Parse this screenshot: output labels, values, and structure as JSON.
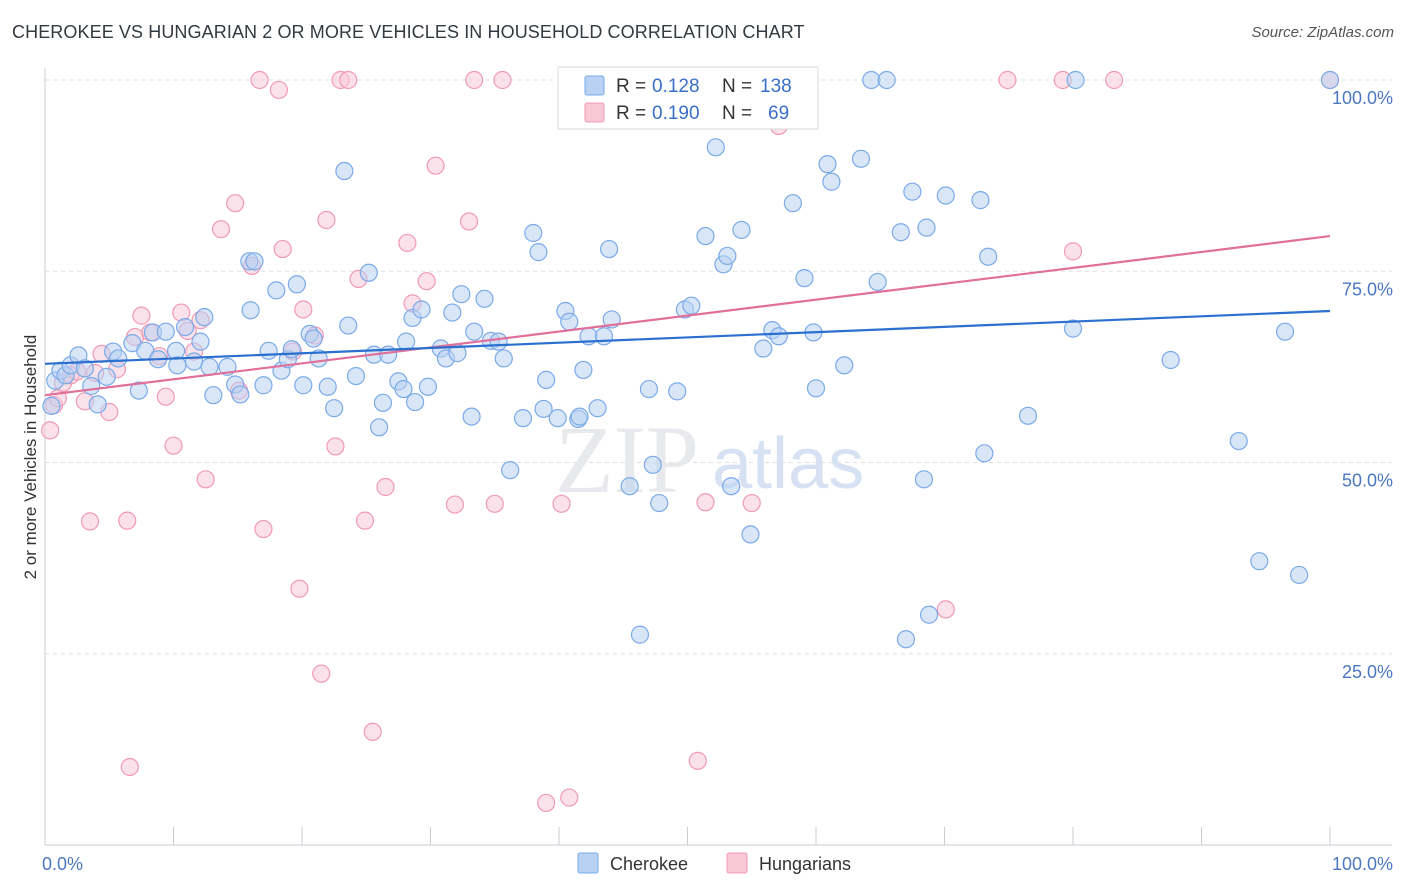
{
  "title": "CHEROKEE VS HUNGARIAN 2 OR MORE VEHICLES IN HOUSEHOLD CORRELATION CHART",
  "source": "Source: ZipAtlas.com",
  "watermark": {
    "zip": "ZIP",
    "atlas": "atlas"
  },
  "colors": {
    "cherokee": "#7aaae8",
    "cherokee_fill": "#b9d2f3",
    "cherokee_line": "#2b6fcf",
    "hungarians": "#f09ab5",
    "hungarians_fill": "#f8c8d7",
    "hungarians_line": "#e0709a",
    "tick_label": "#4a77c0",
    "grid": "#dde1e6"
  },
  "legend": {
    "rows": [
      {
        "r_label": "R =",
        "r_value": "0.128",
        "n_label": "N =",
        "n_value": "138"
      },
      {
        "r_label": "R =",
        "r_value": "0.190",
        "n_label": "N =",
        "n_value": "69"
      }
    ]
  },
  "bottom_legend": {
    "cherokee": "Cherokee",
    "hungarians": "Hungarians"
  },
  "chart_data": {
    "type": "scatter",
    "title": "CHEROKEE VS HUNGARIAN 2 OR MORE VEHICLES IN HOUSEHOLD CORRELATION CHART",
    "xlabel": "",
    "ylabel": "2 or more Vehicles in Household",
    "xlim": [
      0,
      100
    ],
    "ylim": [
      0,
      100
    ],
    "x_tick_labels": [
      "0.0%",
      "100.0%"
    ],
    "y_tick_labels": [
      "25.0%",
      "50.0%",
      "75.0%",
      "100.0%"
    ],
    "y_ticks": [
      25,
      50,
      75,
      100
    ],
    "grid": true,
    "legend_position": "top-center",
    "series": [
      {
        "name": "Cherokee",
        "R": 0.128,
        "N": 138,
        "trend": {
          "x": [
            0,
            100
          ],
          "y": [
            62.9,
            69.8
          ]
        },
        "points": [
          [
            0.5,
            57.4
          ],
          [
            0.8,
            60.7
          ],
          [
            1.2,
            62.0
          ],
          [
            1.6,
            61.4
          ],
          [
            2.0,
            62.7
          ],
          [
            2.6,
            64.0
          ],
          [
            3.1,
            62.3
          ],
          [
            3.6,
            60.0
          ],
          [
            4.1,
            57.6
          ],
          [
            4.8,
            61.2
          ],
          [
            5.3,
            64.5
          ],
          [
            5.7,
            63.6
          ],
          [
            6.8,
            65.6
          ],
          [
            7.3,
            59.4
          ],
          [
            7.8,
            64.6
          ],
          [
            8.4,
            67.0
          ],
          [
            8.8,
            63.5
          ],
          [
            9.4,
            67.1
          ],
          [
            10.2,
            64.6
          ],
          [
            10.3,
            62.7
          ],
          [
            10.9,
            67.7
          ],
          [
            11.6,
            63.2
          ],
          [
            12.1,
            65.8
          ],
          [
            12.4,
            69.0
          ],
          [
            12.8,
            62.5
          ],
          [
            13.1,
            58.8
          ],
          [
            14.2,
            62.5
          ],
          [
            14.8,
            60.2
          ],
          [
            15.2,
            58.9
          ],
          [
            15.9,
            76.3
          ],
          [
            16.0,
            69.9
          ],
          [
            16.3,
            76.3
          ],
          [
            17.0,
            60.1
          ],
          [
            17.4,
            64.6
          ],
          [
            18.0,
            72.5
          ],
          [
            18.4,
            62.0
          ],
          [
            18.9,
            63.5
          ],
          [
            19.2,
            64.8
          ],
          [
            19.6,
            73.3
          ],
          [
            20.1,
            60.1
          ],
          [
            20.6,
            66.8
          ],
          [
            20.9,
            66.2
          ],
          [
            21.3,
            63.6
          ],
          [
            22.0,
            59.9
          ],
          [
            22.5,
            57.1
          ],
          [
            23.3,
            88.1
          ],
          [
            23.6,
            67.9
          ],
          [
            24.2,
            61.3
          ],
          [
            25.2,
            74.8
          ],
          [
            25.6,
            64.1
          ],
          [
            26.0,
            54.6
          ],
          [
            26.3,
            57.8
          ],
          [
            26.7,
            64.1
          ],
          [
            27.5,
            60.6
          ],
          [
            27.9,
            59.6
          ],
          [
            28.1,
            65.8
          ],
          [
            28.6,
            68.9
          ],
          [
            28.8,
            57.9
          ],
          [
            29.3,
            70.0
          ],
          [
            29.8,
            59.9
          ],
          [
            30.8,
            64.9
          ],
          [
            31.2,
            63.6
          ],
          [
            31.7,
            69.6
          ],
          [
            32.1,
            64.3
          ],
          [
            32.4,
            72.0
          ],
          [
            33.2,
            56.0
          ],
          [
            33.4,
            67.1
          ],
          [
            34.2,
            71.4
          ],
          [
            34.7,
            65.9
          ],
          [
            35.3,
            65.8
          ],
          [
            35.7,
            63.6
          ],
          [
            36.2,
            49.0
          ],
          [
            37.2,
            55.8
          ],
          [
            38.0,
            80.0
          ],
          [
            38.4,
            77.5
          ],
          [
            38.8,
            57.0
          ],
          [
            39.0,
            60.8
          ],
          [
            39.9,
            55.8
          ],
          [
            40.5,
            69.8
          ],
          [
            40.8,
            68.4
          ],
          [
            41.5,
            55.7
          ],
          [
            41.6,
            56.0
          ],
          [
            41.9,
            62.1
          ],
          [
            42.3,
            66.5
          ],
          [
            43.0,
            57.1
          ],
          [
            43.5,
            66.5
          ],
          [
            43.9,
            77.9
          ],
          [
            44.1,
            68.7
          ],
          [
            45.5,
            46.9
          ],
          [
            46.3,
            27.5
          ],
          [
            47.0,
            59.6
          ],
          [
            47.3,
            49.7
          ],
          [
            47.8,
            44.7
          ],
          [
            49.2,
            59.3
          ],
          [
            49.8,
            70.0
          ],
          [
            50.3,
            70.5
          ],
          [
            50.5,
            100.0
          ],
          [
            51.4,
            79.6
          ],
          [
            52.2,
            91.2
          ],
          [
            52.8,
            75.9
          ],
          [
            53.1,
            77.0
          ],
          [
            53.4,
            46.9
          ],
          [
            54.2,
            80.4
          ],
          [
            54.9,
            40.6
          ],
          [
            55.7,
            100.0
          ],
          [
            55.9,
            64.9
          ],
          [
            56.6,
            67.3
          ],
          [
            57.1,
            66.5
          ],
          [
            58.2,
            83.9
          ],
          [
            59.1,
            74.1
          ],
          [
            59.8,
            67.0
          ],
          [
            60.0,
            59.7
          ],
          [
            60.9,
            89.0
          ],
          [
            61.2,
            86.7
          ],
          [
            62.2,
            62.7
          ],
          [
            63.5,
            89.7
          ],
          [
            64.3,
            100.0
          ],
          [
            64.8,
            73.6
          ],
          [
            65.5,
            100.0
          ],
          [
            66.6,
            80.1
          ],
          [
            67.0,
            26.9
          ],
          [
            67.5,
            85.4
          ],
          [
            68.4,
            47.8
          ],
          [
            68.6,
            80.7
          ],
          [
            68.8,
            30.1
          ],
          [
            70.1,
            84.9
          ],
          [
            72.8,
            84.3
          ],
          [
            73.1,
            51.2
          ],
          [
            73.4,
            76.9
          ],
          [
            76.5,
            56.1
          ],
          [
            80.0,
            67.5
          ],
          [
            80.2,
            100.0
          ],
          [
            87.6,
            63.4
          ],
          [
            92.9,
            52.8
          ],
          [
            94.5,
            37.1
          ],
          [
            96.5,
            67.1
          ],
          [
            97.6,
            35.3
          ],
          [
            100.0,
            100.0
          ]
        ]
      },
      {
        "name": "Hungarians",
        "R": 0.19,
        "N": 69,
        "trend": {
          "x": [
            0,
            100
          ],
          "y": [
            58.8,
            79.6
          ]
        },
        "points": [
          [
            0.4,
            54.2
          ],
          [
            0.7,
            57.5
          ],
          [
            1.0,
            58.4
          ],
          [
            1.4,
            60.4
          ],
          [
            2.0,
            61.4
          ],
          [
            2.5,
            61.9
          ],
          [
            3.1,
            58.0
          ],
          [
            3.9,
            61.7
          ],
          [
            4.4,
            64.2
          ],
          [
            5.0,
            56.6
          ],
          [
            5.6,
            62.2
          ],
          [
            6.4,
            42.4
          ],
          [
            7.0,
            66.4
          ],
          [
            7.5,
            69.2
          ],
          [
            8.2,
            67.0
          ],
          [
            8.9,
            63.9
          ],
          [
            9.4,
            58.6
          ],
          [
            10.0,
            52.2
          ],
          [
            10.6,
            69.6
          ],
          [
            11.1,
            67.2
          ],
          [
            11.6,
            64.5
          ],
          [
            12.1,
            68.6
          ],
          [
            12.5,
            47.8
          ],
          [
            13.7,
            80.5
          ],
          [
            14.8,
            83.9
          ],
          [
            15.1,
            59.4
          ],
          [
            16.1,
            75.7
          ],
          [
            16.7,
            100.0
          ],
          [
            17.0,
            41.3
          ],
          [
            18.2,
            98.7
          ],
          [
            18.5,
            77.9
          ],
          [
            19.3,
            64.5
          ],
          [
            19.8,
            33.5
          ],
          [
            20.1,
            70.0
          ],
          [
            21.0,
            66.6
          ],
          [
            21.5,
            22.4
          ],
          [
            21.9,
            81.7
          ],
          [
            22.6,
            52.1
          ],
          [
            23.0,
            100.0
          ],
          [
            23.6,
            100.0
          ],
          [
            24.4,
            74.0
          ],
          [
            24.9,
            42.4
          ],
          [
            25.5,
            14.8
          ],
          [
            26.5,
            46.8
          ],
          [
            28.2,
            78.7
          ],
          [
            28.6,
            70.8
          ],
          [
            29.7,
            73.7
          ],
          [
            30.4,
            88.8
          ],
          [
            31.9,
            44.5
          ],
          [
            33.0,
            81.5
          ],
          [
            33.4,
            100.0
          ],
          [
            35.0,
            44.6
          ],
          [
            35.6,
            100.0
          ],
          [
            39.0,
            5.5
          ],
          [
            40.2,
            44.6
          ],
          [
            40.8,
            6.2
          ],
          [
            47.1,
            100.0
          ],
          [
            50.8,
            11.0
          ],
          [
            51.4,
            44.8
          ],
          [
            55.0,
            44.7
          ],
          [
            57.1,
            94.0
          ],
          [
            70.1,
            30.8
          ],
          [
            74.9,
            100.0
          ],
          [
            79.2,
            100.0
          ],
          [
            80.0,
            77.6
          ],
          [
            83.2,
            100.0
          ],
          [
            100.0,
            100.0
          ],
          [
            3.5,
            42.3
          ],
          [
            6.6,
            10.2
          ]
        ]
      }
    ]
  }
}
